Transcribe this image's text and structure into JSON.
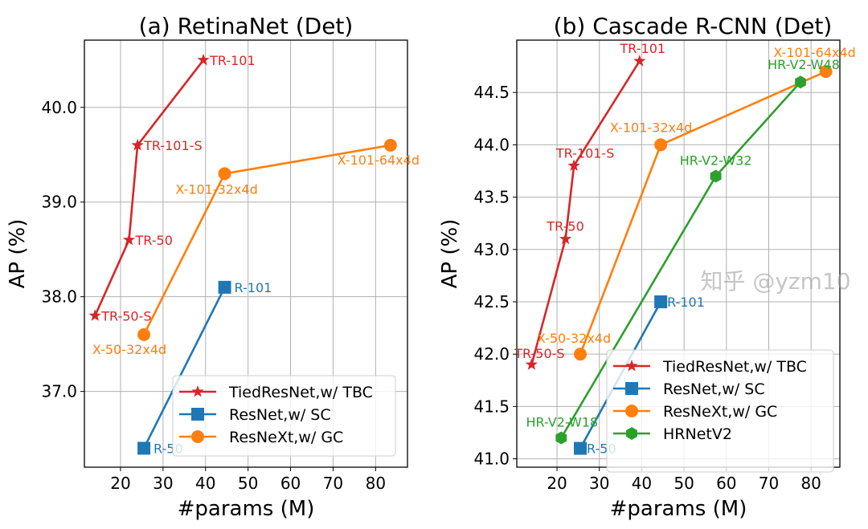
{
  "colors": {
    "TiedResNet": "#d62728",
    "ResNet": "#1f77b4",
    "ResNeXt": "#ff7f0e",
    "HRNetV2": "#2ca02c"
  },
  "watermark": "知乎 @yzm10",
  "chart_data": [
    {
      "type": "line",
      "title": "(a) RetinaNet (Det)",
      "xlabel": "#params (M)",
      "ylabel": "AP (%)",
      "xlim": [
        11.5,
        87.5
      ],
      "ylim": [
        36.2,
        40.71
      ],
      "xticks": [
        20,
        30,
        40,
        50,
        60,
        70,
        80
      ],
      "yticks": [
        37.0,
        38.0,
        39.0,
        40.0
      ],
      "grid": true,
      "legend_position": "lower-right",
      "series": [
        {
          "name": "TiedResNet,w/ TBC",
          "color_key": "TiedResNet",
          "marker": "star",
          "points": [
            {
              "x": 14,
              "y": 37.8,
              "label": "TR-50-S"
            },
            {
              "x": 22,
              "y": 38.6,
              "label": "TR-50"
            },
            {
              "x": 24,
              "y": 39.6,
              "label": "TR-101-S"
            },
            {
              "x": 39.5,
              "y": 40.5,
              "label": "TR-101"
            }
          ]
        },
        {
          "name": "ResNet,w/ SC",
          "color_key": "ResNet",
          "marker": "square",
          "points": [
            {
              "x": 25.5,
              "y": 36.4,
              "label": "R-50"
            },
            {
              "x": 44.5,
              "y": 38.1,
              "label": "R-101"
            }
          ]
        },
        {
          "name": "ResNeXt,w/ GC",
          "color_key": "ResNeXt",
          "marker": "circle",
          "points": [
            {
              "x": 25.5,
              "y": 37.6,
              "label": "X-50-32x4d"
            },
            {
              "x": 44.5,
              "y": 39.3,
              "label": "X-101-32x4d"
            },
            {
              "x": 83.5,
              "y": 39.6,
              "label": "X-101-64x4d"
            }
          ]
        }
      ]
    },
    {
      "type": "line",
      "title": "(b) Cascade R-CNN (Det)",
      "xlabel": "#params (M)",
      "ylabel": "AP (%)",
      "xlim": [
        10.5,
        86.8
      ],
      "ylim": [
        40.92,
        45.0
      ],
      "xticks": [
        20,
        30,
        40,
        50,
        60,
        70,
        80
      ],
      "yticks": [
        41.0,
        41.5,
        42.0,
        42.5,
        43.0,
        43.5,
        44.0,
        44.5
      ],
      "grid": true,
      "legend_position": "lower-right",
      "series": [
        {
          "name": "TiedResNet,w/ TBC",
          "color_key": "TiedResNet",
          "marker": "star",
          "points": [
            {
              "x": 14,
              "y": 41.9,
              "label": "TR-50-S"
            },
            {
              "x": 22,
              "y": 43.1,
              "label": "TR-50"
            },
            {
              "x": 24,
              "y": 43.8,
              "label": "TR-101-S"
            },
            {
              "x": 39.5,
              "y": 44.8,
              "label": "TR-101"
            }
          ]
        },
        {
          "name": "ResNet,w/ SC",
          "color_key": "ResNet",
          "marker": "square",
          "points": [
            {
              "x": 25.5,
              "y": 41.1,
              "label": "R-50"
            },
            {
              "x": 44.5,
              "y": 42.5,
              "label": "R-101"
            }
          ]
        },
        {
          "name": "ResNeXt,w/ GC",
          "color_key": "ResNeXt",
          "marker": "circle",
          "points": [
            {
              "x": 25.5,
              "y": 42.0,
              "label": "X-50-32x4d"
            },
            {
              "x": 44.5,
              "y": 44.0,
              "label": "X-101-32x4d"
            },
            {
              "x": 83.5,
              "y": 44.7,
              "label": "X-101-64x4d"
            }
          ]
        },
        {
          "name": "HRNetV2",
          "color_key": "HRNetV2",
          "marker": "hexagon",
          "points": [
            {
              "x": 21,
              "y": 41.2,
              "label": "HR-V2-W18"
            },
            {
              "x": 57.5,
              "y": 43.7,
              "label": "HR-V2-W32"
            },
            {
              "x": 77.5,
              "y": 44.6,
              "label": "HR-V2-W48"
            }
          ]
        }
      ]
    }
  ]
}
